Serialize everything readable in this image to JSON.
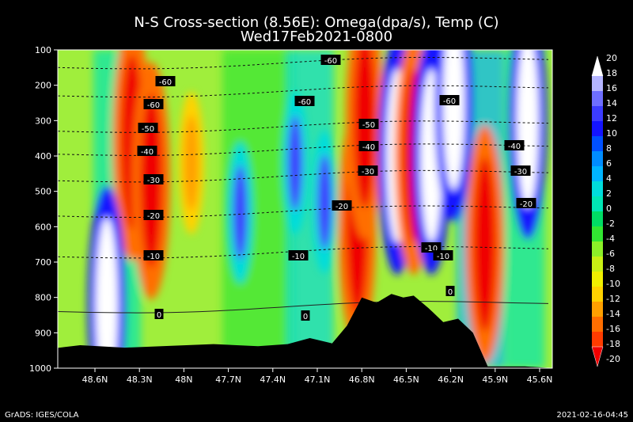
{
  "chart_data": {
    "type": "heatmap",
    "title": "N-S Cross-section (8.56E): Omega(dpa/s), Temp (C)",
    "subtitle": "Wed17Feb2021-0800",
    "xlabel": "",
    "ylabel": "",
    "x_ticks": [
      "48.6N",
      "48.3N",
      "48N",
      "47.7N",
      "47.4N",
      "47.1N",
      "46.8N",
      "46.5N",
      "46.2N",
      "45.9N",
      "45.6N"
    ],
    "y_ticks": [
      100,
      200,
      300,
      400,
      500,
      600,
      700,
      800,
      900,
      1000
    ],
    "ylim": [
      100,
      1000
    ],
    "colorbar": {
      "labels": [
        20,
        18,
        16,
        14,
        12,
        10,
        8,
        6,
        4,
        2,
        0,
        -2,
        -4,
        -6,
        -8,
        -10,
        -12,
        -14,
        -16,
        -18,
        -20
      ],
      "colors": [
        "#ffffff",
        "#b4b4ff",
        "#6e6eff",
        "#3c3cff",
        "#1414ff",
        "#0050ff",
        "#008cff",
        "#00b4ff",
        "#00dcdc",
        "#00e6b4",
        "#00dc64",
        "#32e632",
        "#8cf028",
        "#c8f014",
        "#f0f000",
        "#ffd200",
        "#ffa000",
        "#ff6e00",
        "#ff3c00",
        "#f00000"
      ]
    },
    "temperature_contour_labels": [
      "-60",
      "-60",
      "-60",
      "-60",
      "-60",
      "-50",
      "-50",
      "-40",
      "-40",
      "-40",
      "-30",
      "-30",
      "-30",
      "-20",
      "-20",
      "-20",
      "-10",
      "-10",
      "-10",
      "-10",
      "0",
      "0",
      "0"
    ],
    "omega_features": [
      {
        "x": 48.35,
        "p": 360,
        "level": "strong-negative"
      },
      {
        "x": 48.22,
        "p": 470,
        "level": "strong-negative"
      },
      {
        "x": 48.52,
        "p": 820,
        "level": "strong-positive"
      },
      {
        "x": 46.83,
        "p": 600,
        "level": "strong-negative"
      },
      {
        "x": 46.78,
        "p": 300,
        "level": "strong-negative"
      },
      {
        "x": 46.56,
        "p": 400,
        "level": "strong-positive"
      },
      {
        "x": 46.45,
        "p": 400,
        "level": "strong-negative"
      },
      {
        "x": 46.33,
        "p": 400,
        "level": "strong-positive"
      },
      {
        "x": 46.18,
        "p": 250,
        "level": "strong-positive"
      },
      {
        "x": 45.97,
        "p": 650,
        "level": "strong-negative"
      },
      {
        "x": 45.68,
        "p": 300,
        "level": "strong-positive"
      },
      {
        "x": 47.25,
        "p": 420,
        "level": "moderate-positive"
      },
      {
        "x": 47.05,
        "p": 530,
        "level": "moderate-positive"
      },
      {
        "x": 47.95,
        "p": 420,
        "level": "moderate-negative"
      },
      {
        "x": 47.62,
        "p": 560,
        "level": "moderate-positive"
      }
    ]
  },
  "footer": {
    "left": "GrADS: IGES/COLA",
    "right": "2021-02-16-04:45"
  }
}
